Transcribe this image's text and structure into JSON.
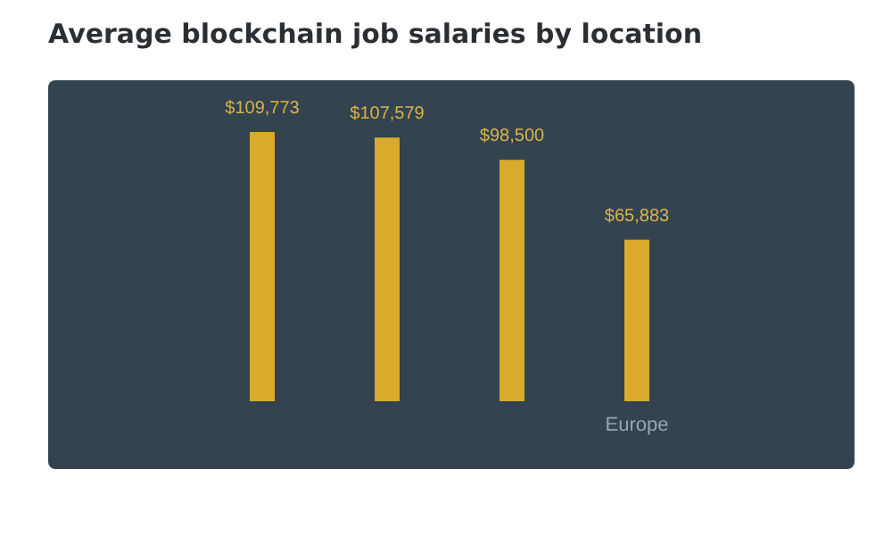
{
  "chart_data": {
    "type": "bar",
    "title": "Average blockchain job salaries by location",
    "categories": [
      null,
      null,
      null,
      "Europe"
    ],
    "values": [
      109773,
      107579,
      98500,
      65883
    ],
    "value_labels": [
      "$109,773",
      "$107,579",
      "$98,500",
      "$65,883"
    ],
    "color": "#d9aa2c"
  }
}
